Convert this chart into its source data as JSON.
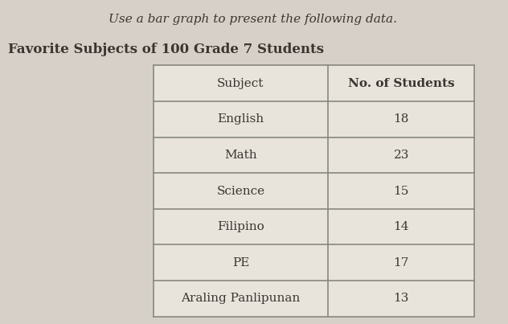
{
  "instruction_text": "Use a bar graph to present the following data.",
  "title": "Favorite Subjects of 100 Grade 7 Students",
  "col_headers": [
    "Subject",
    "No. of Students"
  ],
  "rows": [
    [
      "English",
      "18"
    ],
    [
      "Math",
      "23"
    ],
    [
      "Science",
      "15"
    ],
    [
      "Filipino",
      "14"
    ],
    [
      "PE",
      "17"
    ],
    [
      "Araling Panlipunan",
      "13"
    ]
  ],
  "background_color": "#d6d0c8",
  "table_bg": "#e8e4dc",
  "text_color": "#3a3530",
  "line_color": "#888880",
  "instruction_fontsize": 11,
  "title_fontsize": 12,
  "cell_fontsize": 11,
  "header_fontsize": 11
}
